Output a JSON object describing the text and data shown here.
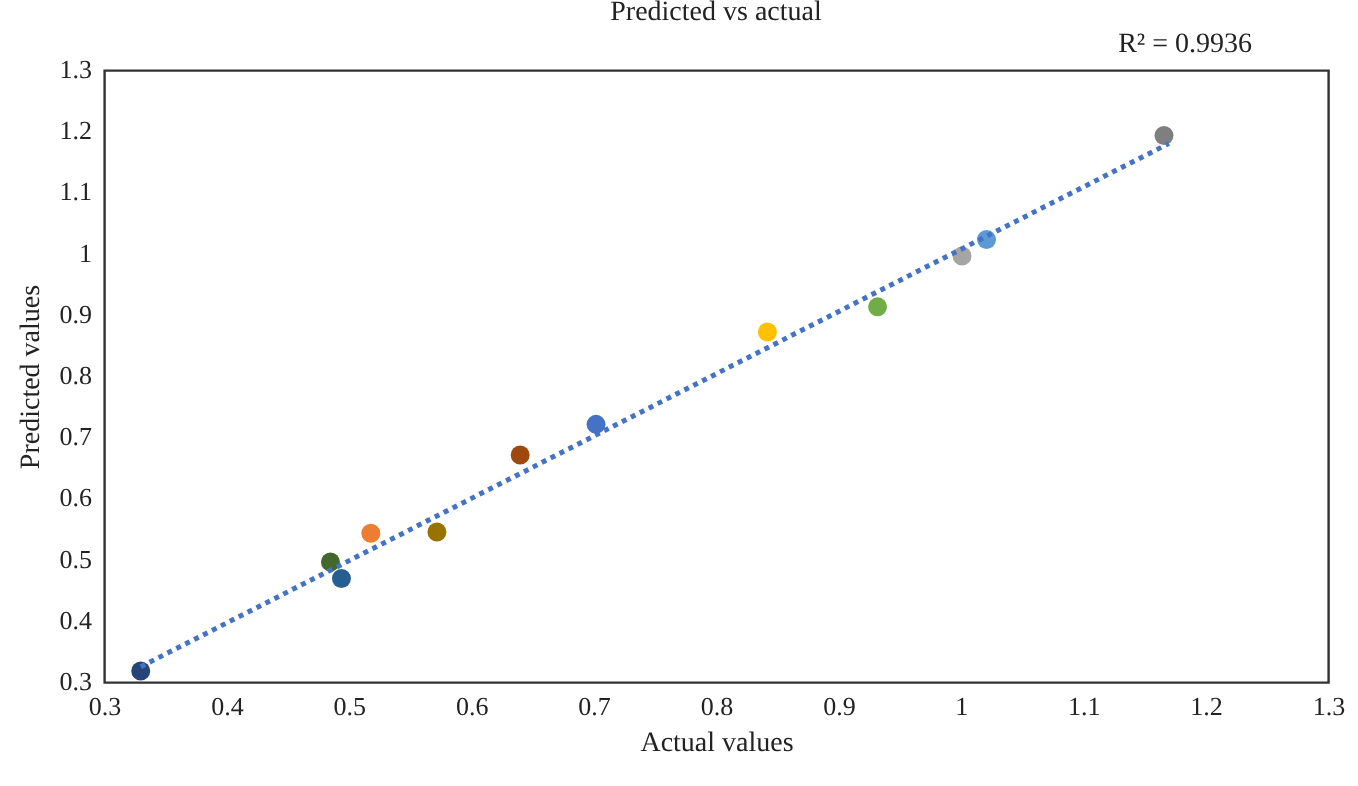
{
  "chart_data": {
    "type": "scatter",
    "title": "Predicted vs actual",
    "xlabel": "Actual values",
    "ylabel": "Predicted values",
    "annotations": [
      "R² = 0.9936"
    ],
    "xlim": [
      0.3,
      1.3
    ],
    "xticks": [
      0.3,
      0.4,
      0.5,
      0.6,
      0.7,
      0.8,
      0.9,
      1,
      1.1,
      1.2,
      1.3
    ],
    "ylim": [
      0.3,
      1.3
    ],
    "yticks": [
      0.3,
      0.4,
      0.5,
      0.6,
      0.7,
      0.8,
      0.9,
      1,
      1.1,
      1.2,
      1.3
    ],
    "marker": "circle",
    "series": [
      {
        "x": [
          0.33,
          0.485,
          0.494,
          0.518,
          0.572,
          0.64,
          0.702,
          0.842,
          0.932,
          1.001,
          1.021,
          1.166
        ],
        "values": [
          0.318,
          0.496,
          0.469,
          0.543,
          0.545,
          0.671,
          0.721,
          0.872,
          0.913,
          0.996,
          1.023,
          1.193
        ],
        "colors": [
          "#264478",
          "#43682b",
          "#255e91",
          "#ed7d31",
          "#997300",
          "#9e480e",
          "#4472c4",
          "#ffc000",
          "#70ad47",
          "#a5a5a5",
          "#5b9bd5",
          "#7f7f7f"
        ]
      },
      {
        "type": "line",
        "x": [
          0.33,
          1.17
        ],
        "values": [
          0.325,
          1.18
        ],
        "color": "#4472c4",
        "line_style": "dotted",
        "marker": "none"
      }
    ]
  }
}
